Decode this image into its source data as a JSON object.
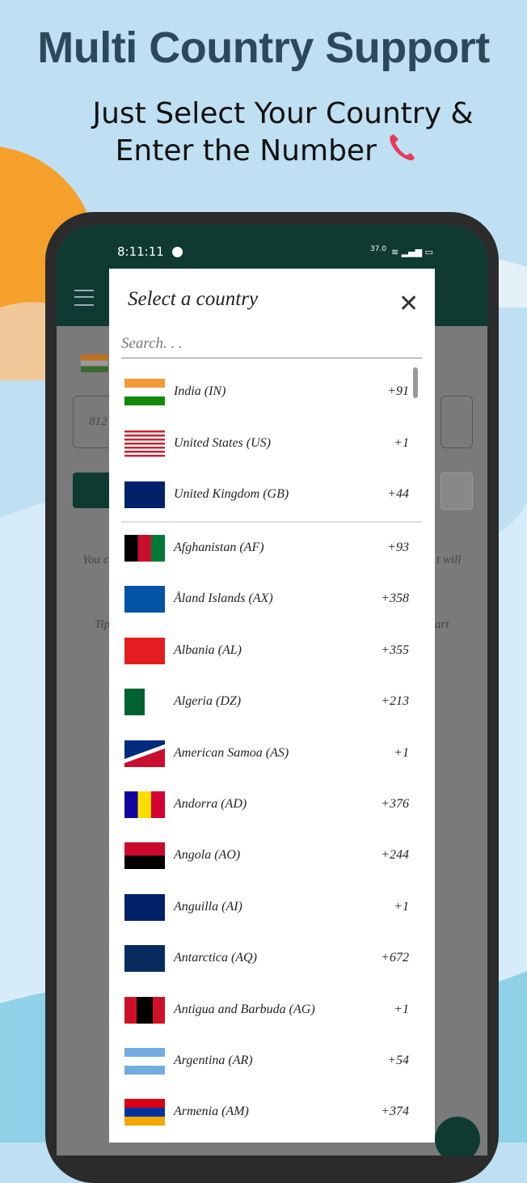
{
  "header": {
    "title": "Multi Country Support",
    "subtitle_lines": [
      "Just Select Your Country &",
      "Enter the Number"
    ]
  },
  "status_bar": {
    "time": "8:11:11",
    "speed": "37.0"
  },
  "background": {
    "number_hint": "812",
    "text_left": "You c",
    "text_right": "t will",
    "tip_left": "Tip",
    "tip_right": "art"
  },
  "dialog": {
    "title": "Select a country",
    "search_placeholder": "Search. . .",
    "pinned": [
      {
        "name": "India (IN)",
        "code": "+91"
      },
      {
        "name": "United States (US)",
        "code": "+1"
      },
      {
        "name": "United Kingdom (GB)",
        "code": "+44"
      }
    ],
    "countries": [
      {
        "name": "Afghanistan (AF)",
        "code": "+93"
      },
      {
        "name": "Åland Islands (AX)",
        "code": "+358"
      },
      {
        "name": "Albania (AL)",
        "code": "+355"
      },
      {
        "name": "Algeria (DZ)",
        "code": "+213"
      },
      {
        "name": "American Samoa (AS)",
        "code": "+1"
      },
      {
        "name": "Andorra (AD)",
        "code": "+376"
      },
      {
        "name": "Angola (AO)",
        "code": "+244"
      },
      {
        "name": "Anguilla (AI)",
        "code": "+1"
      },
      {
        "name": "Antarctica (AQ)",
        "code": "+672"
      },
      {
        "name": "Antigua and Barbuda (AG)",
        "code": "+1"
      },
      {
        "name": "Argentina (AR)",
        "code": "+54"
      },
      {
        "name": "Armenia (AM)",
        "code": "+374"
      }
    ]
  }
}
